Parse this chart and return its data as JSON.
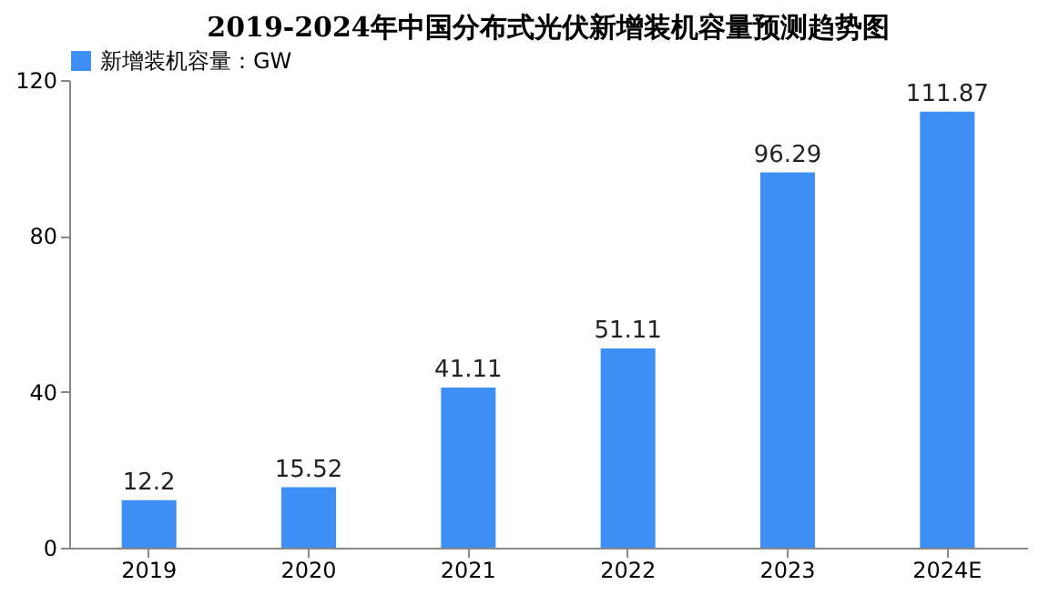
{
  "chart_data": {
    "type": "bar",
    "title": "2019-2024年中国分布式光伏新增装机容量预测趋势图",
    "categories": [
      "2019",
      "2020",
      "2021",
      "2022",
      "2023",
      "2024E"
    ],
    "series": [
      {
        "name": "新增装机容量：GW",
        "color": "#3d8ef5",
        "values": [
          12.2,
          15.52,
          41.11,
          51.11,
          96.29,
          111.87
        ]
      }
    ],
    "ylim": [
      0,
      120
    ],
    "yticks": [
      0,
      40,
      80,
      120
    ],
    "grid": false,
    "legend": "top",
    "data_labels": true
  }
}
